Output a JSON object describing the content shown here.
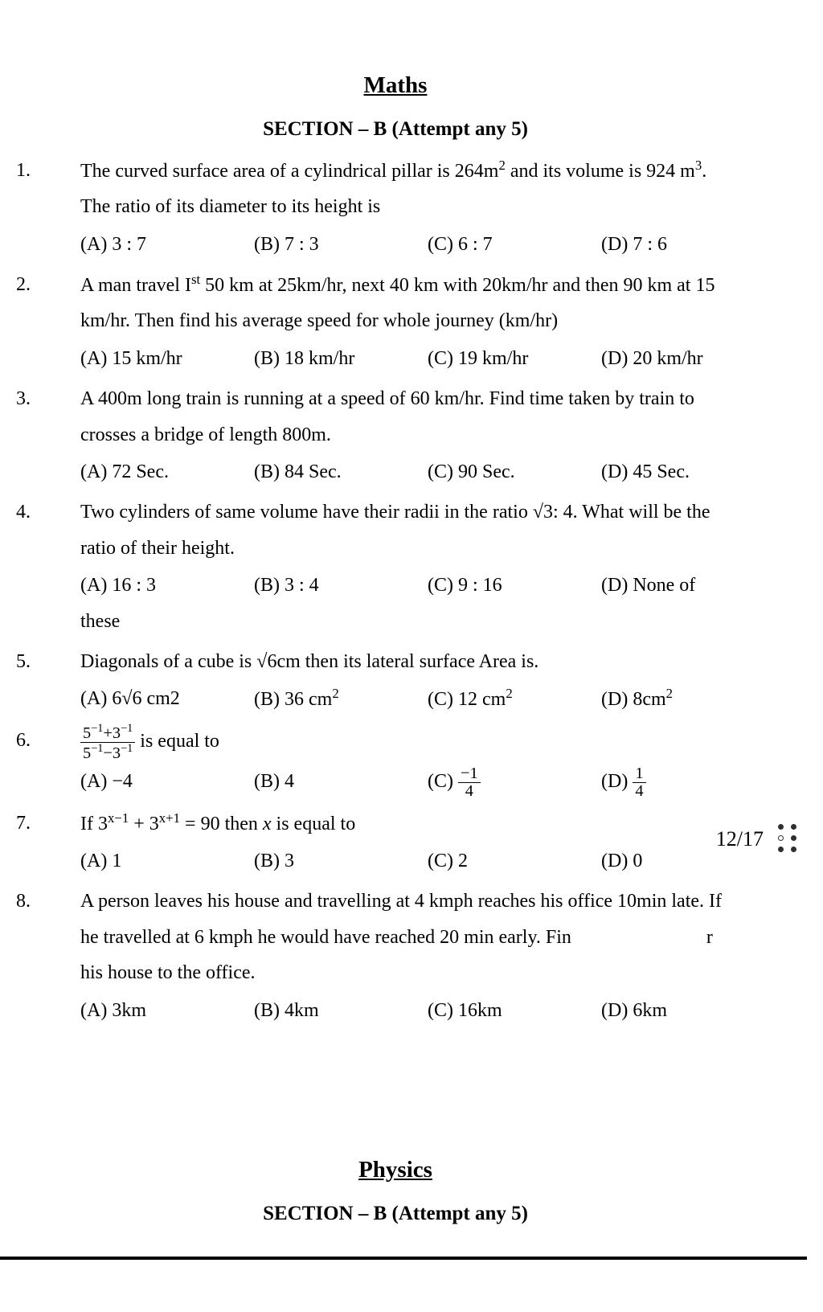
{
  "maths": {
    "title": "Maths",
    "section": "SECTION – B (Attempt any 5)",
    "questions": [
      {
        "num": "1.",
        "lines": [
          "The curved surface area of a cylindrical pillar is 264m<sup>2</sup> and its volume is 924 m<sup>3</sup>.",
          "The ratio of its diameter to its height is"
        ],
        "opts": [
          "(A) 3 : 7",
          "(B) 7 : 3",
          "(C) 6 : 7",
          "(D) 7 : 6"
        ]
      },
      {
        "num": "2.",
        "lines": [
          "A man travel I<sup>st</sup> 50 km at 25km/hr, next 40 km with 20km/hr and then 90 km at 15",
          "km/hr. Then find his average speed for whole journey (km/hr)"
        ],
        "opts": [
          "(A) 15 km/hr",
          "(B) 18 km/hr",
          "(C) 19 km/hr",
          "(D) 20 km/hr"
        ]
      },
      {
        "num": "3.",
        "lines": [
          "A 400m long train is running at a speed of 60 km/hr. Find time taken by train to",
          "crosses a bridge of length 800m."
        ],
        "opts": [
          "(A) 72 Sec.",
          "(B) 84 Sec.",
          "(C) 90 Sec.",
          "(D) 45 Sec."
        ]
      },
      {
        "num": "4.",
        "lines": [
          "Two cylinders of same volume have their radii in the ratio √3: 4. What will be the",
          "ratio of their height."
        ],
        "opts": [
          "(A) 16 : 3",
          "(B) 3 : 4",
          "(C) 9 : 16",
          "(D) None of"
        ],
        "trailing": "these"
      },
      {
        "num": "5.",
        "lines": [
          "Diagonals of a cube is √6cm then its lateral surface Area is."
        ],
        "opts": [
          "(A) 6√6 cm2",
          "(B) 36 cm<sup>2</sup>",
          "(C) 12 cm<sup>2</sup>",
          "(D) 8cm<sup>2</sup>"
        ]
      },
      {
        "num": "6.",
        "lines": [
          "<span class='frac'><span class='num'>5<sup>−1</sup>+3<sup>−1</sup></span><span class='den'>5<sup>−1</sup>−3<sup>−1</sup></span></span> is equal to"
        ],
        "opts": [
          "(A) −4",
          "(B) 4",
          "(C) <span class='frac'><span class='num'>−1</span><span class='den'>4</span></span>",
          "(D) <span class='frac'><span class='num'>1</span><span class='den'>4</span></span>"
        ]
      },
      {
        "num": "7.",
        "lines": [
          "If 3<sup>x−1</sup> + 3<sup>x+1</sup> = 90 then <i>x</i> is equal to"
        ],
        "opts": [
          "(A) 1",
          "(B) 3",
          "(C) 2",
          "(D) 0"
        ]
      },
      {
        "num": "8.",
        "lines": [
          "A person leaves his house and travelling at 4 kmph reaches his office 10min late. If",
          "he travelled at 6 kmph he would have reached 20 min early. Fin&nbsp;&nbsp;&nbsp;&nbsp;&nbsp;&nbsp;&nbsp;&nbsp;&nbsp;&nbsp;&nbsp;&nbsp;&nbsp;&nbsp;&nbsp;&nbsp;&nbsp;&nbsp;&nbsp;&nbsp;&nbsp;&nbsp;&nbsp;&nbsp;&nbsp;&nbsp;&nbsp;&nbsp;r",
          "his house to the office."
        ],
        "opts": [
          "(A) 3km",
          "(B) 4km",
          "(C) 16km",
          "(D) 6km"
        ]
      }
    ]
  },
  "physics": {
    "title": "Physics",
    "section": "SECTION – B (Attempt any 5)"
  },
  "pager": "12/17"
}
